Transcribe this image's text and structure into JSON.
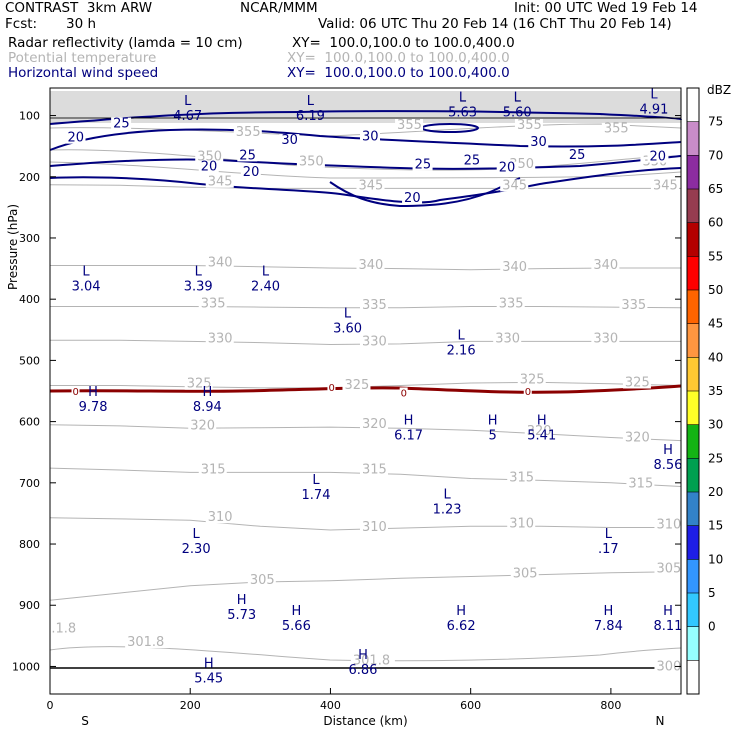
{
  "header": {
    "left_title": "CONTRAST  3km ARW",
    "center_title": "NCAR/MMM",
    "init": "Init: 00 UTC Wed 19 Feb 14",
    "fcst_label": "Fcst:",
    "fcst_value": "30 h",
    "valid": "Valid: 06 UTC Thu 20 Feb 14 (16 ChT Thu 20 Feb 14)"
  },
  "fields": [
    {
      "name": "Radar reflectivity (lamda = 10 cm)",
      "range": "XY=  100.0,100.0 to 100.0,400.0",
      "color": "#000000"
    },
    {
      "name": "Potential temperature",
      "range": "XY=  100.0,100.0 to 100.0,400.0",
      "color": "#b4b4b4"
    },
    {
      "name": "Horizontal wind speed",
      "range": "XY=  100.0,100.0 to 100.0,400.0",
      "color": "#00007f"
    }
  ],
  "chart_data": {
    "type": "contour cross-section",
    "xlabel": "Distance (km)",
    "ylabel": "Pressure (hPa)",
    "xlim": [
      0,
      900
    ],
    "ylim_pressure": [
      1045,
      55
    ],
    "x_ticks": [
      0,
      200,
      400,
      600,
      800
    ],
    "y_ticks": [
      100,
      200,
      300,
      400,
      500,
      600,
      700,
      800,
      900,
      1000
    ],
    "x_end_labels": {
      "left": "S",
      "right": "N"
    },
    "colorbar": {
      "unit": "dBZ",
      "levels": [
        "75",
        "70",
        "65",
        "60",
        "55",
        "50",
        "45",
        "40",
        "35",
        "30",
        "25",
        "20",
        "15",
        "10",
        "5",
        "0"
      ],
      "colors": [
        "#ffffff",
        "#c88cc8",
        "#8c2ca0",
        "#963c50",
        "#b40000",
        "#ff0000",
        "#ff6400",
        "#ff9640",
        "#ffc832",
        "#ffff28",
        "#14b414",
        "#00a050",
        "#3282c8",
        "#1e1ee6",
        "#3296ff",
        "#32c8ff",
        "#96ffff",
        "#ffffff"
      ]
    },
    "theta_labels": [
      {
        "v": "355",
        "x": 265,
        "p": 132
      },
      {
        "v": "355",
        "x": 495,
        "p": 120
      },
      {
        "v": "355",
        "x": 666,
        "p": 120
      },
      {
        "v": "355",
        "x": 790,
        "p": 126
      },
      {
        "v": "350",
        "x": 210,
        "p": 172
      },
      {
        "v": "350",
        "x": 355,
        "p": 180
      },
      {
        "v": "350",
        "x": 655,
        "p": 184
      },
      {
        "v": "350",
        "x": 845,
        "p": 180
      },
      {
        "v": "345",
        "x": 225,
        "p": 213
      },
      {
        "v": "345",
        "x": 440,
        "p": 219
      },
      {
        "v": "345",
        "x": 645,
        "p": 219
      },
      {
        "v": "345",
        "x": 860,
        "p": 219
      },
      {
        "v": "340",
        "x": 225,
        "p": 345
      },
      {
        "v": "340",
        "x": 440,
        "p": 349
      },
      {
        "v": "340",
        "x": 645,
        "p": 352
      },
      {
        "v": "340",
        "x": 775,
        "p": 349
      },
      {
        "v": "335",
        "x": 215,
        "p": 412
      },
      {
        "v": "335",
        "x": 445,
        "p": 414
      },
      {
        "v": "335",
        "x": 640,
        "p": 412
      },
      {
        "v": "335",
        "x": 815,
        "p": 414
      },
      {
        "v": "330",
        "x": 225,
        "p": 469
      },
      {
        "v": "330",
        "x": 445,
        "p": 474
      },
      {
        "v": "330",
        "x": 635,
        "p": 469
      },
      {
        "v": "330",
        "x": 775,
        "p": 469
      },
      {
        "v": "325",
        "x": 195,
        "p": 543
      },
      {
        "v": "325",
        "x": 420,
        "p": 545
      },
      {
        "v": "325",
        "x": 670,
        "p": 536
      },
      {
        "v": "325",
        "x": 820,
        "p": 541
      },
      {
        "v": "320",
        "x": 200,
        "p": 611
      },
      {
        "v": "320",
        "x": 445,
        "p": 609
      },
      {
        "v": "320",
        "x": 680,
        "p": 620
      },
      {
        "v": "320",
        "x": 820,
        "p": 631
      },
      {
        "v": "315",
        "x": 215,
        "p": 683
      },
      {
        "v": "315",
        "x": 445,
        "p": 683
      },
      {
        "v": "315",
        "x": 655,
        "p": 696
      },
      {
        "v": "315",
        "x": 825,
        "p": 706
      },
      {
        "v": "310",
        "x": 225,
        "p": 761
      },
      {
        "v": "310",
        "x": 445,
        "p": 777
      },
      {
        "v": "310",
        "x": 655,
        "p": 771
      },
      {
        "v": "310",
        "x": 865,
        "p": 773
      },
      {
        "v": "305",
        "x": 285,
        "p": 864
      },
      {
        "v": "305",
        "x": 660,
        "p": 853
      },
      {
        "v": "305",
        "x": 865,
        "p": 845
      },
      {
        "v": "301.8",
        "x": 110,
        "p": 965
      },
      {
        "v": "301.8",
        "x": 432,
        "p": 995
      },
      {
        "v": ".1.8",
        "x": 2,
        "p": 943
      },
      {
        "v": "300",
        "x": 865,
        "p": 1005
      }
    ],
    "wind_labels": [
      {
        "v": "25",
        "x": 90,
        "p": 118
      },
      {
        "v": "20",
        "x": 25,
        "p": 141
      },
      {
        "v": "30",
        "x": 330,
        "p": 145
      },
      {
        "v": "30",
        "x": 445,
        "p": 139
      },
      {
        "v": "30",
        "x": 685,
        "p": 148
      },
      {
        "v": "25",
        "x": 270,
        "p": 170
      },
      {
        "v": "25",
        "x": 520,
        "p": 185
      },
      {
        "v": "25",
        "x": 590,
        "p": 178
      },
      {
        "v": "25",
        "x": 740,
        "p": 169
      },
      {
        "v": "20",
        "x": 215,
        "p": 188
      },
      {
        "v": "20",
        "x": 275,
        "p": 197
      },
      {
        "v": "20",
        "x": 640,
        "p": 190
      },
      {
        "v": "20",
        "x": 855,
        "p": 172
      },
      {
        "v": "20",
        "x": 505,
        "p": 240
      }
    ],
    "wind_extrema": [
      {
        "t": "L",
        "v": "4.67",
        "x": 185,
        "p": 83
      },
      {
        "t": "L",
        "v": "6.19",
        "x": 360,
        "p": 83
      },
      {
        "t": "L",
        "v": "5.63",
        "x": 577,
        "p": 77
      },
      {
        "t": "L",
        "v": "5.60",
        "x": 655,
        "p": 77
      },
      {
        "t": "L",
        "v": "4.91",
        "x": 850,
        "p": 72
      },
      {
        "t": "L",
        "v": "3.04",
        "x": 40,
        "p": 361
      },
      {
        "t": "L",
        "v": "3.39",
        "x": 200,
        "p": 361
      },
      {
        "t": "L",
        "v": "2.40",
        "x": 296,
        "p": 361
      },
      {
        "t": "L",
        "v": "3.60",
        "x": 413,
        "p": 430
      },
      {
        "t": "L",
        "v": "2.16",
        "x": 575,
        "p": 466
      },
      {
        "t": "H",
        "v": "9.78",
        "x": 50,
        "p": 558
      },
      {
        "t": "H",
        "v": "8.94",
        "x": 213,
        "p": 558
      },
      {
        "t": "H",
        "v": "6.17",
        "x": 500,
        "p": 605
      },
      {
        "t": "H",
        "v": "5",
        "x": 620,
        "p": 605
      },
      {
        "t": "H",
        "v": "5.41",
        "x": 690,
        "p": 605
      },
      {
        "t": "H",
        "v": "8.56",
        "x": 870,
        "p": 653
      },
      {
        "t": "L",
        "v": "1.74",
        "x": 368,
        "p": 702
      },
      {
        "t": "L",
        "v": "1.23",
        "x": 555,
        "p": 726
      },
      {
        "t": "L",
        "v": "2.30",
        "x": 197,
        "p": 790
      },
      {
        "t": "L",
        "v": ".17",
        "x": 785,
        "p": 790
      },
      {
        "t": "H",
        "v": "5.73",
        "x": 262,
        "p": 898
      },
      {
        "t": "H",
        "v": "5.66",
        "x": 340,
        "p": 916
      },
      {
        "t": "H",
        "v": "6.62",
        "x": 575,
        "p": 916
      },
      {
        "t": "H",
        "v": "7.84",
        "x": 785,
        "p": 916
      },
      {
        "t": "H",
        "v": "8.11",
        "x": 870,
        "p": 916
      },
      {
        "t": "H",
        "v": "6.86",
        "x": 435,
        "p": 988
      },
      {
        "t": "H",
        "v": "5.45",
        "x": 215,
        "p": 1002
      }
    ],
    "zero_labels": [
      {
        "v": "0",
        "x": 35,
        "p": 552
      },
      {
        "v": "0",
        "x": 400,
        "p": 545
      },
      {
        "v": "0",
        "x": 503,
        "p": 554
      },
      {
        "v": "0",
        "x": 680,
        "p": 552
      }
    ],
    "theta_lines": [
      {
        "v": "345",
        "p": [
          213,
          214,
          217,
          219,
          219,
          219,
          219,
          219,
          219,
          219
        ]
      },
      {
        "v": "340",
        "p": [
          345,
          345,
          345,
          347,
          349,
          350,
          352,
          350,
          349,
          349
        ]
      },
      {
        "v": "335",
        "p": [
          412,
          412,
          412,
          413,
          414,
          414,
          412,
          412,
          413,
          414
        ]
      },
      {
        "v": "330",
        "p": [
          467,
          467,
          469,
          471,
          474,
          473,
          469,
          469,
          469,
          469
        ]
      },
      {
        "v": "325",
        "p": [
          541,
          541,
          543,
          545,
          545,
          541,
          537,
          536,
          538,
          541
        ]
      },
      {
        "v": "320",
        "p": [
          605,
          607,
          611,
          610,
          609,
          611,
          614,
          620,
          626,
          631
        ]
      },
      {
        "v": "315",
        "p": [
          676,
          679,
          683,
          683,
          683,
          686,
          693,
          696,
          700,
          706
        ]
      },
      {
        "v": "310",
        "p": [
          757,
          759,
          761,
          771,
          777,
          774,
          771,
          771,
          773,
          773
        ]
      },
      {
        "v": "305",
        "p": [
          892,
          880,
          868,
          862,
          860,
          856,
          853,
          850,
          847,
          845
        ]
      }
    ]
  }
}
